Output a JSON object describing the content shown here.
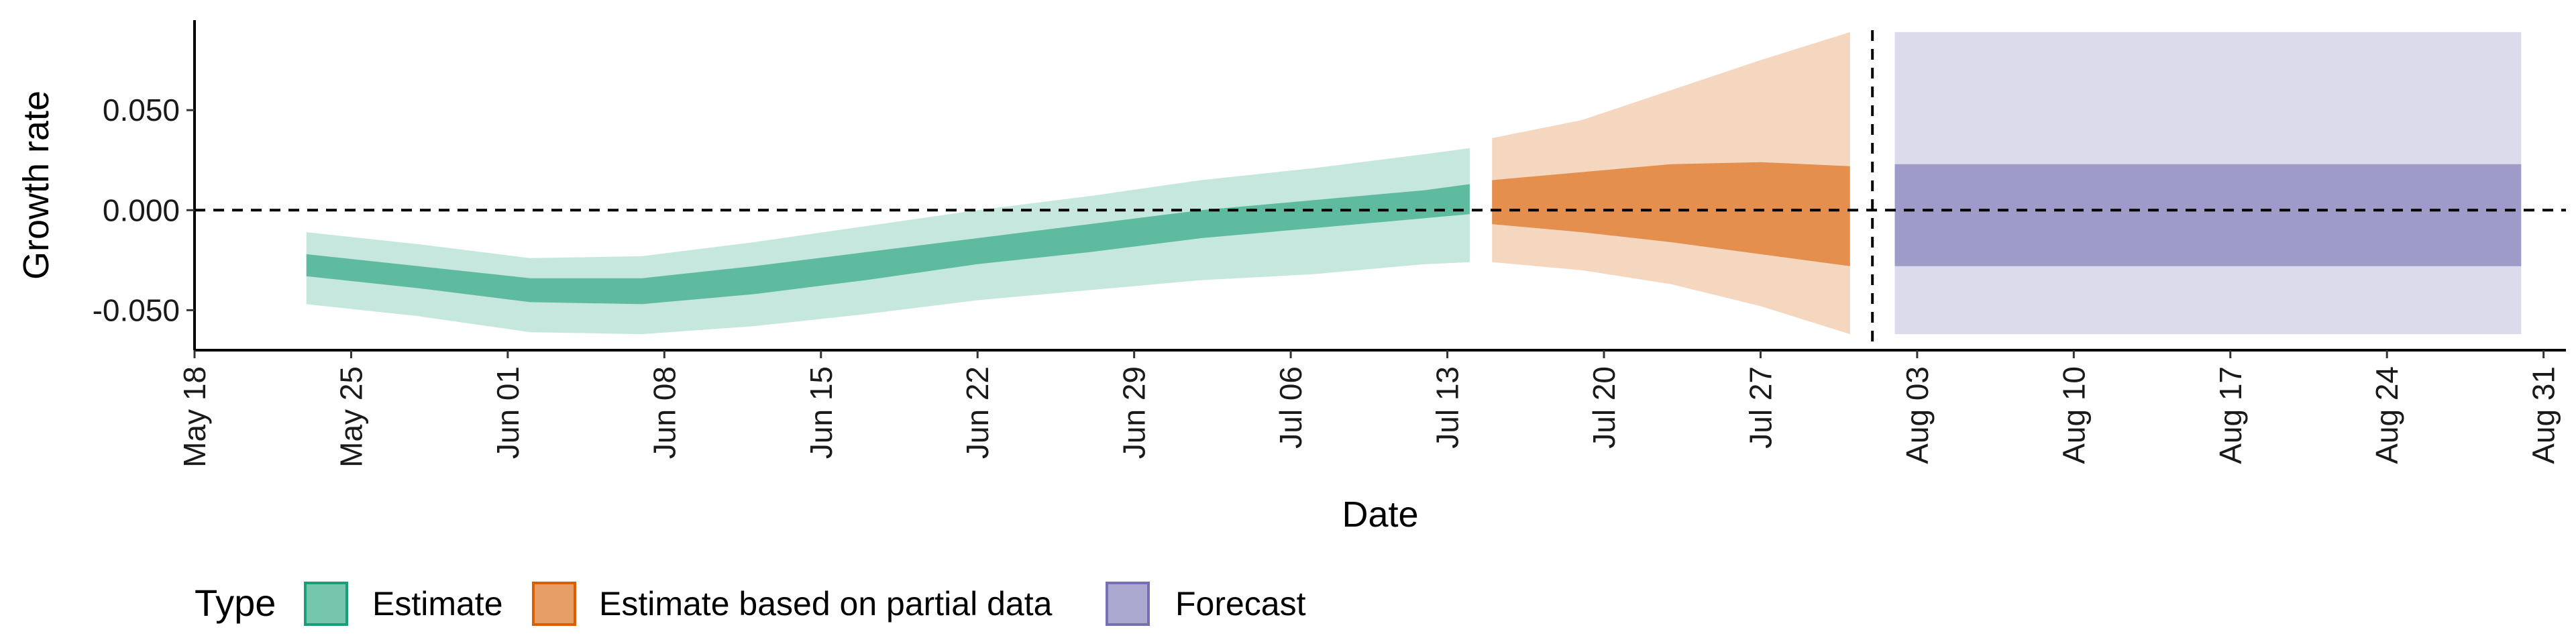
{
  "chart_data": {
    "type": "area",
    "xlabel": "Date",
    "ylabel": "Growth rate",
    "x_tick_labels": [
      "May 18",
      "May 25",
      "Jun 01",
      "Jun 08",
      "Jun 15",
      "Jun 22",
      "Jun 29",
      "Jul 06",
      "Jul 13",
      "Jul 20",
      "Jul 27",
      "Aug 03",
      "Aug 10",
      "Aug 17",
      "Aug 24",
      "Aug 31"
    ],
    "y_ticks": [
      -0.05,
      0.0,
      0.05
    ],
    "y_tick_labels": [
      "-0.050",
      "0.000",
      "0.050"
    ],
    "xlim": [
      "2020-05-18",
      "2020-09-01"
    ],
    "ylim": [
      -0.07,
      0.095
    ],
    "reference_lines": {
      "horizontal_y": 0.0,
      "vertical_x": "2020-08-01"
    },
    "legend": {
      "title": "Type",
      "position": "bottom",
      "entries": [
        {
          "label": "Estimate",
          "color": "#1b9e77"
        },
        {
          "label": "Estimate based on partial data",
          "color": "#d95f02"
        },
        {
          "label": "Forecast",
          "color": "#7570b3"
        }
      ]
    },
    "series": [
      {
        "name": "Estimate",
        "color": "#1b9e77",
        "dates": [
          "2020-05-23",
          "2020-05-28",
          "2020-06-02",
          "2020-06-07",
          "2020-06-12",
          "2020-06-17",
          "2020-06-22",
          "2020-06-27",
          "2020-07-02",
          "2020-07-07",
          "2020-07-12",
          "2020-07-14"
        ],
        "outer_lower": [
          -0.047,
          -0.053,
          -0.061,
          -0.062,
          -0.058,
          -0.052,
          -0.045,
          -0.04,
          -0.035,
          -0.032,
          -0.027,
          -0.026
        ],
        "outer_upper": [
          -0.011,
          -0.017,
          -0.024,
          -0.023,
          -0.016,
          -0.008,
          0.0,
          0.007,
          0.015,
          0.021,
          0.028,
          0.031
        ],
        "inner_lower": [
          -0.033,
          -0.039,
          -0.046,
          -0.047,
          -0.042,
          -0.035,
          -0.027,
          -0.021,
          -0.014,
          -0.009,
          -0.004,
          -0.002
        ],
        "inner_upper": [
          -0.022,
          -0.028,
          -0.034,
          -0.034,
          -0.028,
          -0.021,
          -0.014,
          -0.007,
          0.0,
          0.005,
          0.01,
          0.013
        ]
      },
      {
        "name": "Estimate based on partial data",
        "color": "#d95f02",
        "dates": [
          "2020-07-15",
          "2020-07-19",
          "2020-07-23",
          "2020-07-27",
          "2020-07-31"
        ],
        "outer_lower": [
          -0.026,
          -0.03,
          -0.037,
          -0.048,
          -0.062
        ],
        "outer_upper": [
          0.036,
          0.045,
          0.06,
          0.075,
          0.089
        ],
        "inner_lower": [
          -0.007,
          -0.011,
          -0.016,
          -0.022,
          -0.028
        ],
        "inner_upper": [
          0.015,
          0.019,
          0.023,
          0.024,
          0.022
        ]
      },
      {
        "name": "Forecast",
        "color": "#7570b3",
        "dates": [
          "2020-08-02",
          "2020-08-30"
        ],
        "outer_lower": [
          -0.062,
          -0.062
        ],
        "outer_upper": [
          0.089,
          0.089
        ],
        "inner_lower": [
          -0.028,
          -0.028
        ],
        "inner_upper": [
          0.023,
          0.023
        ]
      }
    ]
  }
}
